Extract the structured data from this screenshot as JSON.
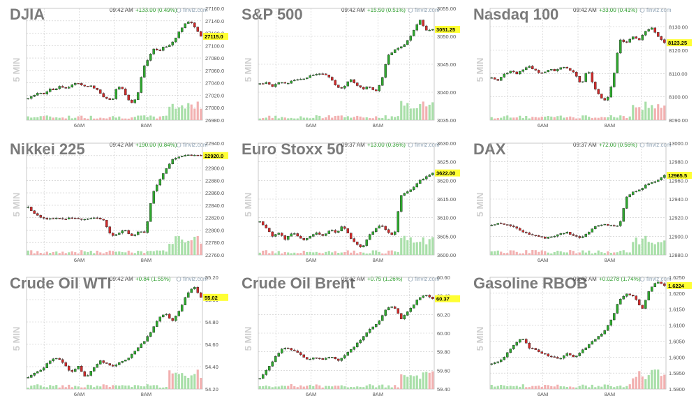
{
  "colors": {
    "up": "#2ea82e",
    "down": "#d02a2a",
    "vol_up": "#a8dfa8",
    "vol_down": "#f2b0b0",
    "grid": "#c8c8c8",
    "price_bg": "#ffff33"
  },
  "chart_data": [
    {
      "type": "candlestick",
      "title": "DJIA",
      "time": "09:42 AM",
      "change": "+133.00 (0.49%)",
      "source": "finviz.com",
      "timeframe": "5 MIN",
      "yticks": [
        "27160.0",
        "27140.0",
        "27120.0",
        "27100.0",
        "27080.0",
        "27060.0",
        "27040.0",
        "27020.0",
        "27000.0",
        "26980.0"
      ],
      "ylim": [
        26980,
        27160
      ],
      "xticks": [
        "6AM",
        "8AM"
      ],
      "last": 27115,
      "last_label": "27115.0",
      "path": [
        27015,
        27020,
        27025,
        27022,
        27030,
        27028,
        27035,
        27030,
        27035,
        27040,
        27038,
        27034,
        27036,
        27030,
        27020,
        27015,
        27010,
        27035,
        27030,
        27015,
        27005,
        27025,
        27065,
        27080,
        27095,
        27092,
        27098,
        27100,
        27110,
        27125,
        27135,
        27140,
        27128,
        27115
      ]
    },
    {
      "type": "candlestick",
      "title": "S&P 500",
      "time": "09:42 AM",
      "change": "+15.50 (0.51%)",
      "source": "finviz.com",
      "timeframe": "5 MIN",
      "yticks": [
        "3055.00",
        "3050.00",
        "3045.00",
        "3040.00",
        "3035.00"
      ],
      "ylim": [
        3035,
        3055
      ],
      "xticks": [
        "6AM",
        "8AM"
      ],
      "last": 3051.25,
      "last_label": "3051.25",
      "path": [
        3041.5,
        3041.8,
        3041,
        3041.8,
        3041.5,
        3042,
        3042.2,
        3042.5,
        3043,
        3043.3,
        3043.2,
        3042.5,
        3041,
        3040.5,
        3042.5,
        3041.5,
        3040.5,
        3041,
        3040,
        3042,
        3046.5,
        3047.5,
        3048,
        3049,
        3051,
        3053,
        3051,
        3051.25
      ]
    },
    {
      "type": "candlestick",
      "title": "Nasdaq 100",
      "time": "09:42 AM",
      "change": "+33.00 (0.41%)",
      "source": "finviz.com",
      "timeframe": "5 MIN",
      "yticks": [
        "8130.00",
        "8120.00",
        "8110.00",
        "8100.00",
        "8090.00"
      ],
      "ylim": [
        8090,
        8138
      ],
      "xticks": [
        "6AM",
        "8AM"
      ],
      "last": 8123.25,
      "last_label": "8123.25",
      "path": [
        8108,
        8107,
        8110,
        8111,
        8110,
        8112,
        8113,
        8111,
        8110,
        8112,
        8111,
        8113,
        8112,
        8110,
        8105,
        8112,
        8104,
        8100,
        8098,
        8108,
        8125,
        8123,
        8126,
        8124,
        8128,
        8130,
        8126,
        8123.25
      ]
    },
    {
      "type": "candlestick",
      "title": "Nikkei 225",
      "time": "09:42 AM",
      "change": "+190.00 (0.84%)",
      "source": "finviz.com",
      "timeframe": "5 MIN",
      "yticks": [
        "22940.0",
        "22920.0",
        "22900.0",
        "22880.0",
        "22860.0",
        "22840.0",
        "22820.0",
        "22800.0",
        "22780.0",
        "22760.0"
      ],
      "ylim": [
        22760,
        22940
      ],
      "xticks": [
        "6AM",
        "8AM"
      ],
      "last": 22920,
      "last_label": "22920.0",
      "path": [
        22838,
        22825,
        22820,
        22818,
        22820,
        22817,
        22820,
        22818,
        22816,
        22818,
        22820,
        22815,
        22790,
        22795,
        22800,
        22790,
        22798,
        22795,
        22860,
        22880,
        22900,
        22915,
        22918,
        22920,
        22922,
        22920
      ]
    },
    {
      "type": "candlestick",
      "title": "Euro Stoxx 50",
      "time": "09:37 AM",
      "change": "+13.00 (0.36%)",
      "source": "finviz.com",
      "timeframe": "5 MIN",
      "yticks": [
        "3630.00",
        "3625.00",
        "3620.00",
        "3615.00",
        "3610.00",
        "3605.00",
        "3600.00"
      ],
      "ylim": [
        3600,
        3630
      ],
      "xticks": [
        "6AM",
        "8AM"
      ],
      "last": 3622,
      "last_label": "3622.00",
      "path": [
        3609,
        3607,
        3605,
        3606,
        3604,
        3606,
        3605,
        3604,
        3605,
        3606,
        3605,
        3607,
        3606,
        3608,
        3605,
        3603,
        3602,
        3605,
        3607,
        3608,
        3606,
        3605,
        3616,
        3617,
        3618,
        3620,
        3621,
        3622
      ]
    },
    {
      "type": "candlestick",
      "title": "DAX",
      "time": "09:37 AM",
      "change": "+72.00 (0.56%)",
      "source": "finviz.com",
      "timeframe": "5 MIN",
      "yticks": [
        "13000.0",
        "12980.0",
        "12960.0",
        "12940.0",
        "12920.0",
        "12900.0",
        "12880.0"
      ],
      "ylim": [
        12880,
        13000
      ],
      "xticks": [
        "6AM",
        "8AM"
      ],
      "last": 12965.5,
      "last_label": "12965.5",
      "path": [
        12912,
        12915,
        12912,
        12910,
        12905,
        12902,
        12900,
        12898,
        12900,
        12902,
        12905,
        12900,
        12898,
        12905,
        12912,
        12913,
        12911,
        12912,
        12943,
        12948,
        12952,
        12957,
        12960,
        12965.5
      ]
    },
    {
      "type": "candlestick",
      "title": "Crude Oil WTI",
      "time": "09:42 AM",
      "change": "+0.84 (1.55%)",
      "source": "finviz.com",
      "timeframe": "5 MIN",
      "yticks": [
        "55.20",
        "55.00",
        "54.80",
        "54.60",
        "54.40",
        "54.20"
      ],
      "ylim": [
        54.2,
        55.2
      ],
      "xticks": [
        "6AM",
        "8AM"
      ],
      "last": 55.02,
      "last_label": "55.02",
      "path": [
        54.3,
        54.35,
        54.38,
        54.45,
        54.48,
        54.42,
        54.35,
        54.4,
        54.3,
        54.38,
        54.45,
        54.42,
        54.4,
        54.45,
        54.48,
        54.55,
        54.62,
        54.7,
        54.82,
        54.88,
        54.8,
        54.9,
        55.05,
        55.12,
        55.02
      ]
    },
    {
      "type": "candlestick",
      "title": "Crude Oil Brent",
      "time": "09:42 AM",
      "change": "+0.75 (1.26%)",
      "source": "finviz.com",
      "timeframe": "5 MIN",
      "yticks": [
        "60.60",
        "60.40",
        "60.20",
        "60.00",
        "59.80",
        "59.60",
        "59.40"
      ],
      "ylim": [
        59.4,
        60.6
      ],
      "xticks": [
        "6AM",
        "8AM"
      ],
      "last": 60.37,
      "last_label": "60.37",
      "path": [
        59.52,
        59.62,
        59.75,
        59.85,
        59.82,
        59.78,
        59.72,
        59.74,
        59.72,
        59.75,
        59.7,
        59.78,
        59.85,
        59.95,
        60.05,
        60.1,
        60.25,
        60.3,
        60.15,
        60.25,
        60.35,
        60.42,
        60.37
      ]
    },
    {
      "type": "candlestick",
      "title": "Gasoline RBOB",
      "time": "09:42 AM",
      "change": "+0.0278 (1.74%)",
      "source": "finviz.com",
      "timeframe": "5 MIN",
      "yticks": [
        "1.6250",
        "1.6200",
        "1.6150",
        "1.6100",
        "1.6050",
        "1.6000",
        "1.5950",
        "1.5900"
      ],
      "ylim": [
        1.59,
        1.625
      ],
      "xticks": [
        "6AM",
        "8AM"
      ],
      "last": 1.6224,
      "last_label": "1.6224",
      "path": [
        1.598,
        1.5985,
        1.601,
        1.604,
        1.606,
        1.603,
        1.602,
        1.601,
        1.6,
        1.5995,
        1.601,
        1.6,
        1.602,
        1.604,
        1.606,
        1.608,
        1.612,
        1.618,
        1.62,
        1.619,
        1.615,
        1.621,
        1.624,
        1.6224
      ]
    }
  ]
}
